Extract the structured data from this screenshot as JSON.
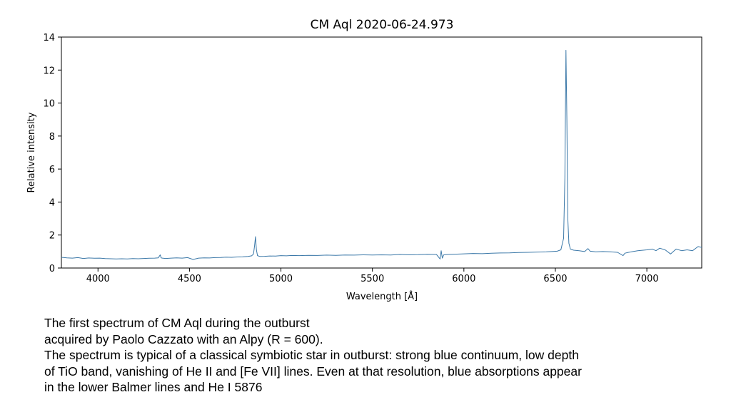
{
  "chart_data": {
    "type": "line",
    "title": "CM Aql  2020-06-24.973",
    "xlabel": "Wavelength [Å]",
    "ylabel": "Relative intensity",
    "xlim": [
      3800,
      7300
    ],
    "ylim": [
      0,
      14
    ],
    "xticks": [
      4000,
      4500,
      5000,
      5500,
      6000,
      6500,
      7000
    ],
    "yticks": [
      0,
      2,
      4,
      6,
      8,
      10,
      12,
      14
    ],
    "grid": false,
    "series_color": "#3b78a8",
    "series": [
      {
        "x": [
          3800,
          3830,
          3860,
          3890,
          3920,
          3950,
          3980,
          4010,
          4040,
          4070,
          4100,
          4130,
          4160,
          4190,
          4220,
          4250,
          4280,
          4310,
          4330,
          4340,
          4345,
          4352,
          4370,
          4400,
          4430,
          4460,
          4490,
          4520,
          4550,
          4580,
          4610,
          4640,
          4670,
          4700,
          4730,
          4760,
          4790,
          4820,
          4840,
          4850,
          4856,
          4861,
          4866,
          4872,
          4885,
          4910,
          4940,
          4970,
          5000,
          5030,
          5060,
          5100,
          5150,
          5200,
          5250,
          5300,
          5350,
          5400,
          5450,
          5500,
          5550,
          5600,
          5650,
          5700,
          5750,
          5800,
          5850,
          5870,
          5876,
          5882,
          5890,
          5910,
          5950,
          6000,
          6050,
          6100,
          6150,
          6200,
          6250,
          6300,
          6350,
          6400,
          6450,
          6480,
          6510,
          6530,
          6545,
          6552,
          6558,
          6563,
          6568,
          6574,
          6582,
          6600,
          6630,
          6660,
          6678,
          6690,
          6720,
          6760,
          6800,
          6840,
          6870,
          6880,
          6900,
          6950,
          7000,
          7030,
          7050,
          7070,
          7100,
          7130,
          7160,
          7190,
          7220,
          7250,
          7280,
          7300
        ],
        "y": [
          0.65,
          0.62,
          0.6,
          0.63,
          0.58,
          0.61,
          0.59,
          0.6,
          0.57,
          0.56,
          0.55,
          0.56,
          0.55,
          0.57,
          0.56,
          0.58,
          0.59,
          0.6,
          0.62,
          0.8,
          0.62,
          0.6,
          0.58,
          0.6,
          0.62,
          0.6,
          0.63,
          0.52,
          0.6,
          0.62,
          0.61,
          0.63,
          0.64,
          0.66,
          0.65,
          0.67,
          0.68,
          0.7,
          0.74,
          0.85,
          1.35,
          1.9,
          1.1,
          0.75,
          0.7,
          0.71,
          0.73,
          0.72,
          0.75,
          0.74,
          0.76,
          0.75,
          0.77,
          0.76,
          0.78,
          0.77,
          0.79,
          0.78,
          0.8,
          0.79,
          0.8,
          0.79,
          0.82,
          0.8,
          0.81,
          0.83,
          0.82,
          0.55,
          1.05,
          0.6,
          0.8,
          0.82,
          0.84,
          0.86,
          0.88,
          0.87,
          0.9,
          0.91,
          0.92,
          0.94,
          0.95,
          0.97,
          0.98,
          1.0,
          1.02,
          1.1,
          1.8,
          5.5,
          13.2,
          9.0,
          3.0,
          1.5,
          1.15,
          1.08,
          1.05,
          1.0,
          1.18,
          1.02,
          0.98,
          1.0,
          0.98,
          0.95,
          0.75,
          0.9,
          0.95,
          1.05,
          1.1,
          1.15,
          1.05,
          1.2,
          1.1,
          0.85,
          1.15,
          1.05,
          1.1,
          1.05,
          1.3,
          1.25
        ]
      }
    ]
  },
  "caption": {
    "line1": "The first spectrum of CM Aql during the outburst",
    "line2": "acquired by Paolo Cazzato with an Alpy (R = 600).",
    "line3": "The spectrum is typical of a classical symbiotic star in outburst: strong blue continuum, low depth",
    "line4": "of TiO band, vanishing of He II and [Fe VII] lines. Even at that resolution, blue absorptions  appear",
    "line5": "in the lower Balmer lines and He I 5876"
  }
}
